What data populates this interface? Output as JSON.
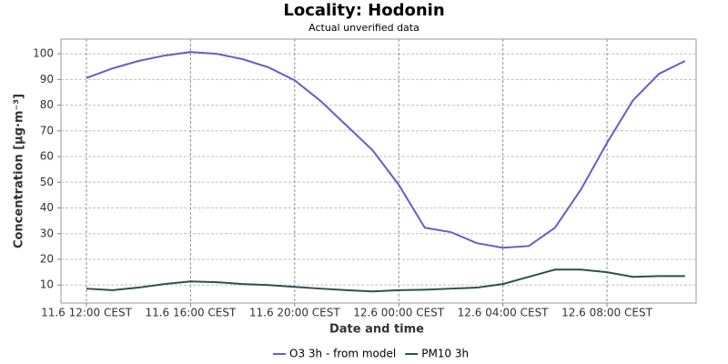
{
  "chart_data": {
    "type": "line",
    "title": "Locality: Hodonin",
    "subtitle": "Actual unverified data",
    "x_label": "Date and time",
    "y_label": "Concentration [µg·m⁻³]",
    "categories": [
      "11.6 12:00 CEST",
      null,
      null,
      null,
      "11.6 16:00 CEST",
      null,
      null,
      null,
      "11.6 20:00 CEST",
      null,
      null,
      null,
      "12.6 00:00 CEST",
      null,
      null,
      null,
      "12.6 04:00 CEST",
      null,
      null,
      null,
      "12.6 08:00 CEST",
      null,
      null,
      null
    ],
    "series": [
      {
        "name": "O3 3h - from model",
        "color": "#6a5acd",
        "values": [
          90.6,
          94.3,
          97.2,
          99.3,
          100.7,
          100,
          97.9,
          94.7,
          89.7,
          81.6,
          72,
          62.4,
          49,
          32.3,
          30.6,
          26.3,
          24.5,
          25.2,
          32.3,
          47.2,
          65.3,
          81.9,
          92.2,
          97.2
        ]
      },
      {
        "name": "PM10 3h",
        "color": "#2f4f4f",
        "values": [
          8.6,
          8,
          9,
          10.4,
          11.4,
          11.1,
          10.4,
          10,
          9.3,
          8.6,
          8,
          7.5,
          8,
          8.2,
          8.6,
          9,
          10.4,
          13.2,
          16,
          16,
          15,
          13.2,
          13.5,
          13.5
        ]
      }
    ],
    "ylim": [
      3,
      105.7
    ],
    "yticks": [
      10,
      20,
      30,
      40,
      50,
      60,
      70,
      80,
      90,
      100
    ],
    "grid": true
  }
}
